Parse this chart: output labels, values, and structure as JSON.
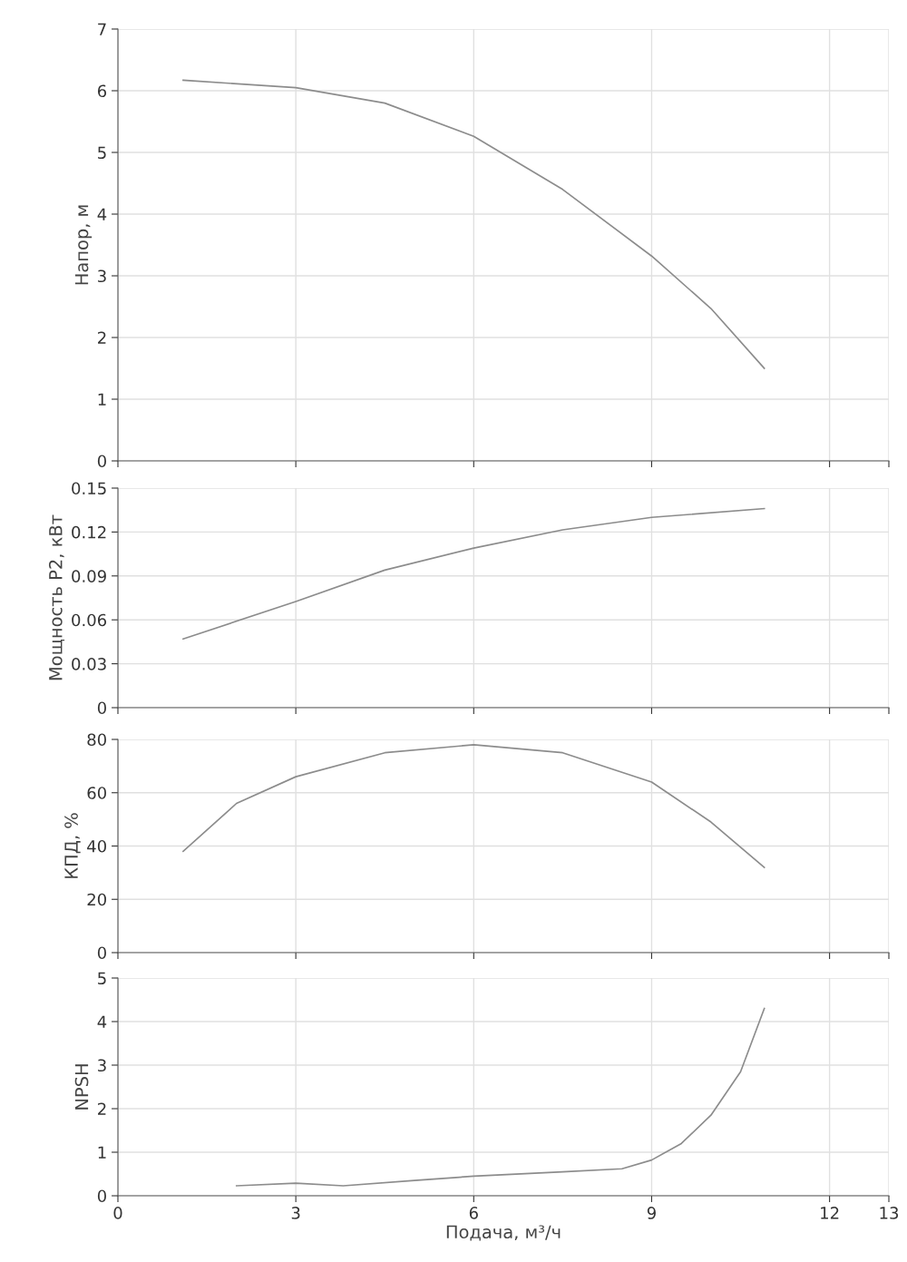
{
  "chart_data": [
    {
      "type": "line",
      "ylabel": "Напор, м",
      "x": [
        1.1,
        3,
        4.5,
        6,
        7.5,
        9,
        10,
        10.9
      ],
      "series": [
        {
          "color": "#8c8c8c",
          "values": [
            6.17,
            6.05,
            5.8,
            5.26,
            4.4,
            3.32,
            2.47,
            1.5
          ]
        }
      ],
      "xlim": [
        0,
        13
      ],
      "xticks": [
        0,
        3,
        6,
        9,
        12,
        13
      ],
      "ylim": [
        0,
        7
      ],
      "yticks": [
        0,
        1,
        2,
        3,
        4,
        5,
        6,
        7
      ],
      "grid": true,
      "tick_labels": "y"
    },
    {
      "type": "line",
      "ylabel": "Мощность P2, кВт",
      "x": [
        1.1,
        3,
        4.5,
        6,
        7.5,
        9,
        10.9
      ],
      "series": [
        {
          "color": "#8c8c8c",
          "values": [
            0.047,
            0.0725,
            0.094,
            0.109,
            0.1215,
            0.13,
            0.136
          ]
        }
      ],
      "xlim": [
        0,
        13
      ],
      "xticks": [
        0,
        3,
        6,
        9,
        12,
        13
      ],
      "ylim": [
        0,
        0.15
      ],
      "yticks": [
        0,
        0.03,
        0.06,
        0.09,
        0.12,
        0.15
      ],
      "grid": true,
      "tick_labels": "y"
    },
    {
      "type": "line",
      "ylabel": "КПД, %",
      "x": [
        1.1,
        2,
        3,
        4.5,
        6,
        7.5,
        9,
        10,
        10.9
      ],
      "series": [
        {
          "color": "#8c8c8c",
          "values": [
            38,
            56,
            66,
            75,
            78,
            75,
            64,
            49,
            32
          ]
        }
      ],
      "xlim": [
        0,
        13
      ],
      "xticks": [
        0,
        3,
        6,
        9,
        12,
        13
      ],
      "ylim": [
        0,
        80
      ],
      "yticks": [
        0,
        20,
        40,
        60,
        80
      ],
      "grid": true,
      "tick_labels": "y"
    },
    {
      "type": "line",
      "ylabel": "NPSH",
      "xlabel": "Подача, м³/ч",
      "x": [
        2,
        3,
        3.8,
        5,
        6,
        7.5,
        8.5,
        9,
        9.5,
        10,
        10.5,
        10.9
      ],
      "series": [
        {
          "color": "#8c8c8c",
          "values": [
            0.23,
            0.29,
            0.23,
            0.35,
            0.45,
            0.55,
            0.62,
            0.82,
            1.2,
            1.85,
            2.85,
            4.3
          ]
        }
      ],
      "xlim": [
        0,
        13
      ],
      "xticks": [
        0,
        3,
        6,
        9,
        12,
        13
      ],
      "ylim": [
        0,
        5
      ],
      "yticks": [
        0,
        1,
        2,
        3,
        4,
        5
      ],
      "grid": true
    }
  ]
}
